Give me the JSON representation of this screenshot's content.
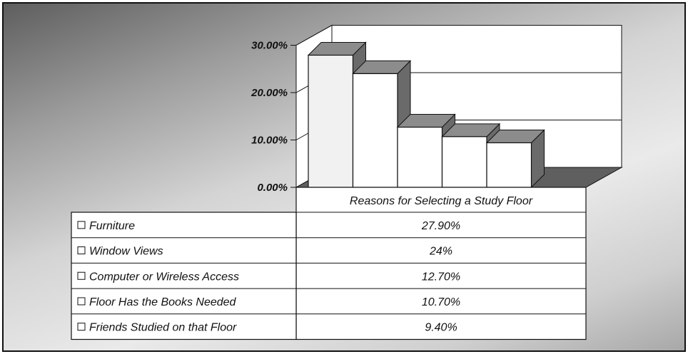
{
  "chart_data": {
    "type": "bar",
    "style": "3d-column-with-data-table",
    "category_title": "Reasons for Selecting a Study Floor",
    "y_ticks": [
      "0.00%",
      "10.00%",
      "20.00%",
      "30.00%"
    ],
    "ylim": [
      0,
      30
    ],
    "series": [
      {
        "name": "Furniture",
        "value": 27.9,
        "label": "27.90%"
      },
      {
        "name": "Window Views",
        "value": 24,
        "label": "24%"
      },
      {
        "name": "Computer or Wireless Access",
        "value": 12.7,
        "label": "12.70%"
      },
      {
        "name": "Floor Has the Books Needed",
        "value": 10.7,
        "label": "10.70%"
      },
      {
        "name": "Friends Studied on that Floor",
        "value": 9.4,
        "label": "9.40%"
      }
    ],
    "grid": true,
    "legend": "data-table-left",
    "colors": {
      "bar_front": "#ffffff",
      "bar_front_first": "#f1f1f1",
      "bar_side": "#6a6a6a",
      "bar_top": "#8c8c8c",
      "floor": "#5f5f5f",
      "wall": "#ffffff",
      "line": "#111111"
    }
  }
}
